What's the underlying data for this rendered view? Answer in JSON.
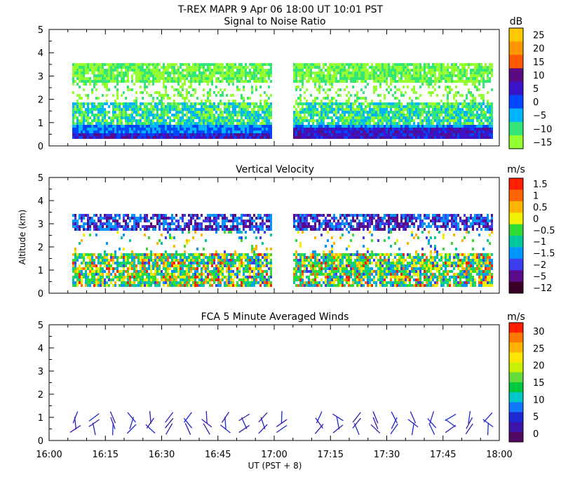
{
  "header": {
    "title": "T-REX  MAPR  9 Apr 06  18:00 UT  10:01  PST"
  },
  "x_axis": {
    "ticks": [
      "16:00",
      "16:15",
      "16:30",
      "16:45",
      "17:00",
      "17:15",
      "17:30",
      "17:45",
      "18:00"
    ],
    "label": "UT  (PST + 8)"
  },
  "y_axis_label": "Altitude (km)",
  "chart_data": [
    {
      "type": "heatmap",
      "title": "Signal to Noise Ratio",
      "unit": "dB",
      "x_range": [
        "16:00",
        "18:00"
      ],
      "ylim": [
        0,
        5
      ],
      "y_ticks": [
        "0",
        "1",
        "2",
        "3",
        "4",
        "5"
      ],
      "colorbar": {
        "labels": [
          "25",
          "20",
          "15",
          "10",
          "5",
          "0",
          "−5",
          "−10",
          "−15"
        ],
        "colors": [
          "#ffc800",
          "#ff9600",
          "#ff5a00",
          "#5a0a82",
          "#3c14c8",
          "#0046ff",
          "#00b4ff",
          "#32e678",
          "#96ff32"
        ]
      },
      "data_gaps": [
        [
          "16:00",
          "16:06"
        ],
        [
          "16:59",
          "17:05"
        ],
        [
          "17:58",
          "18:00"
        ]
      ],
      "layers": [
        {
          "name": "near-surface strong echo",
          "alt": [
            0.4,
            1.0
          ],
          "value_db": "0 to 10"
        },
        {
          "name": "boundary layer",
          "alt": [
            0.4,
            1.8
          ],
          "value_db": "-10 to -5"
        },
        {
          "name": "upper layer",
          "alt": [
            2.8,
            3.6
          ],
          "value_db": "-15 to -10"
        }
      ]
    },
    {
      "type": "heatmap",
      "title": "Vertical Velocity",
      "unit": "m/s",
      "x_range": [
        "16:00",
        "18:00"
      ],
      "ylim": [
        0,
        5
      ],
      "y_ticks": [
        "0",
        "1",
        "2",
        "3",
        "4",
        "5"
      ],
      "colorbar": {
        "labels": [
          "1.5",
          "1",
          "0.5",
          "0",
          "−0.5",
          "−1",
          "−1.5",
          "−2",
          "−5",
          "−12"
        ],
        "colors": [
          "#ff1e00",
          "#ff6400",
          "#ffb400",
          "#f0f000",
          "#32dc32",
          "#00c8a0",
          "#0096ff",
          "#3c3cf0",
          "#5a0a8c",
          "#3c0028"
        ]
      },
      "data_gaps": [
        [
          "16:00",
          "16:06"
        ],
        [
          "16:59",
          "17:05"
        ],
        [
          "17:58",
          "18:00"
        ]
      ],
      "layers": [
        {
          "name": "boundary layer mixed updraft/downdraft",
          "alt": [
            0.4,
            1.8
          ],
          "value_ms": "-1 to 1.5"
        },
        {
          "name": "upper layer sinking",
          "alt": [
            2.7,
            3.5
          ],
          "value_ms": "-5 to -1"
        }
      ]
    },
    {
      "type": "scatter",
      "title": "FCA 5 Minute Averaged Winds",
      "unit": "m/s",
      "x_range": [
        "16:00",
        "18:00"
      ],
      "ylim": [
        0,
        5
      ],
      "y_ticks": [
        "0",
        "1",
        "2",
        "3",
        "4",
        "5"
      ],
      "colorbar": {
        "labels": [
          "30",
          "25",
          "20",
          "15",
          "10",
          "5",
          "0"
        ],
        "colors": [
          "#ff1e00",
          "#ff7800",
          "#ffb400",
          "#ffe600",
          "#c8f000",
          "#64dc3c",
          "#00c83c",
          "#00c8c8",
          "#1478ff",
          "#1e28d2",
          "#3c14aa",
          "#500a64"
        ]
      },
      "barb_times_min": [
        7,
        12,
        17,
        22,
        27,
        32,
        37,
        42,
        47,
        52,
        57,
        62,
        72,
        77,
        82,
        87,
        92,
        97,
        102,
        107,
        112,
        117
      ],
      "barb_altitudes_km": [
        0.5,
        0.75,
        1.0
      ]
    }
  ]
}
